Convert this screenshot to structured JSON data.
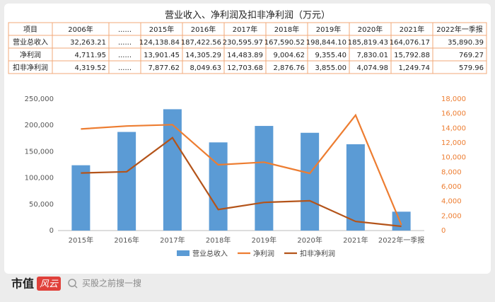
{
  "title": "营业收入、净利润及扣非净利润（万元）",
  "table": {
    "header": [
      "项目",
      "2006年",
      "......",
      "2015年",
      "2016年",
      "2017年",
      "2018年",
      "2019年",
      "2020年",
      "2021年",
      "2022年一季报"
    ],
    "rows": [
      [
        "营业总收入",
        "32,263.21",
        "......",
        "124,138.84",
        "187,422.56",
        "230,595.97",
        "167,590.52",
        "198,844.10",
        "185,819.43",
        "164,076.17",
        "35,890.39"
      ],
      [
        "净利润",
        "4,711.95",
        "......",
        "13,901.45",
        "14,305.29",
        "14,483.89",
        "9,004.62",
        "9,355.40",
        "7,830.01",
        "15,792.88",
        "769.27"
      ],
      [
        "扣非净利润",
        "4,319.52",
        "......",
        "7,877.62",
        "8,049.63",
        "12,703.68",
        "2,876.76",
        "3,855.00",
        "4,074.98",
        "1,249.74",
        "579.96"
      ]
    ]
  },
  "chart_data": {
    "type": "bar",
    "categories": [
      "2015年",
      "2016年",
      "2017年",
      "2018年",
      "2019年",
      "2020年",
      "2021年",
      "2022年一季报"
    ],
    "series": [
      {
        "name": "营业总收入",
        "type": "bar",
        "color": "#5b9bd5",
        "values": [
          124138.84,
          187422.56,
          230595.97,
          167590.52,
          198844.1,
          185819.43,
          164076.17,
          35890.39
        ]
      },
      {
        "name": "净利润",
        "type": "line",
        "axis": "y2",
        "color": "#ed7d31",
        "values": [
          13901.45,
          14305.29,
          14483.89,
          9004.62,
          9355.4,
          7830.01,
          15792.88,
          769.27
        ]
      },
      {
        "name": "扣非净利润",
        "type": "line",
        "axis": "y2",
        "color": "#b4541a",
        "values": [
          7877.62,
          8049.63,
          12703.68,
          2876.76,
          3855.0,
          4074.98,
          1249.74,
          579.96
        ]
      }
    ],
    "ylim": [
      0,
      250000
    ],
    "yticks": [
      0,
      {
        "value": 50000,
        "label": "50,000"
      },
      {
        "value": 100000,
        "label": "100,000"
      },
      {
        "value": 150000,
        "label": "150,000"
      },
      {
        "value": 200000,
        "label": "200,000"
      },
      {
        "value": 250000,
        "label": "250,000"
      }
    ],
    "y2lim": [
      0,
      18000
    ],
    "y2ticks": [
      0,
      {
        "value": 2000,
        "label": "2,000"
      },
      {
        "value": 4000,
        "label": "4,000"
      },
      {
        "value": 6000,
        "label": "6,000"
      },
      {
        "value": 8000,
        "label": "8,000"
      },
      {
        "value": 10000,
        "label": "10,000"
      },
      {
        "value": 12000,
        "label": "12,000"
      },
      {
        "value": 14000,
        "label": "14,000"
      },
      {
        "value": 16000,
        "label": "16,000"
      },
      {
        "value": 18000,
        "label": "18,000"
      }
    ],
    "grid": false,
    "legend": "bottom"
  },
  "footer": {
    "brand": "市值",
    "brand_mark": "风云",
    "slogan": "买股之前搜一搜"
  }
}
